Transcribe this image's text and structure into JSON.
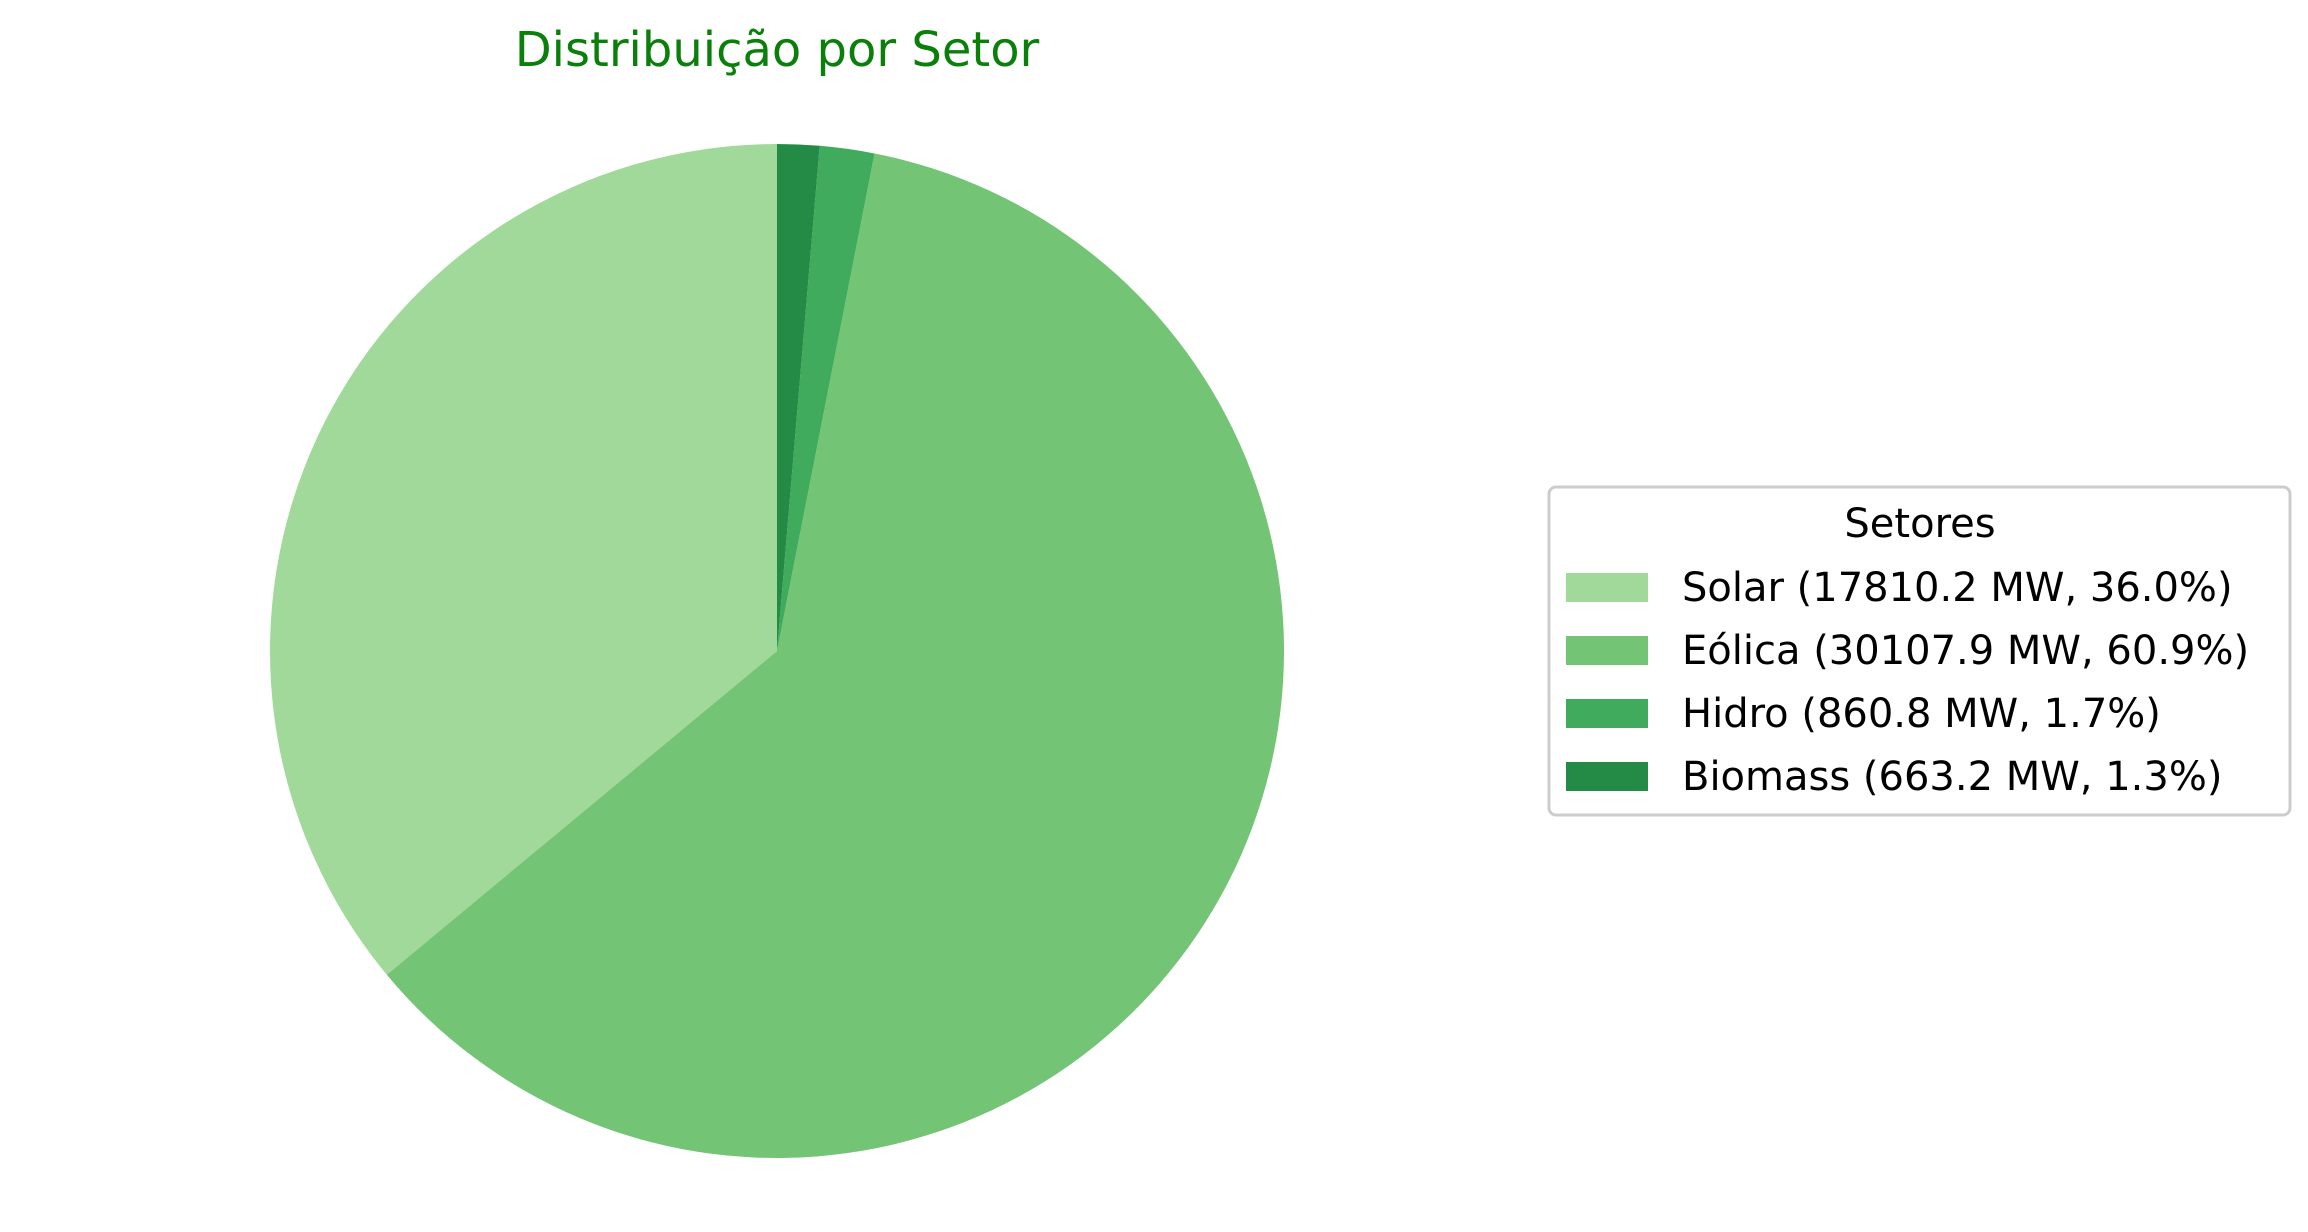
{
  "chart_data": {
    "type": "pie",
    "title": "Distribuição por Setor",
    "unit": "MW",
    "start_angle_deg": 90,
    "direction": "clockwise-from-top-reversed",
    "slices": [
      {
        "label": "Solar",
        "value": 17810.2,
        "percent": 36.0,
        "color": "#a1d99b"
      },
      {
        "label": "Eólica",
        "value": 30107.9,
        "percent": 60.9,
        "color": "#74c476"
      },
      {
        "label": "Hidro",
        "value": 860.8,
        "percent": 1.7,
        "color": "#41ab5d"
      },
      {
        "label": "Biomass",
        "value": 663.2,
        "percent": 1.3,
        "color": "#238b45"
      }
    ],
    "legend": {
      "title": "Setores",
      "placement": "right",
      "entries": [
        "Solar (17810.2 MW, 36.0%)",
        "Eólica (30107.9 MW, 60.9%)",
        "Hidro (860.8 MW, 1.7%)",
        "Biomass (663.2 MW, 1.3%)"
      ]
    }
  }
}
